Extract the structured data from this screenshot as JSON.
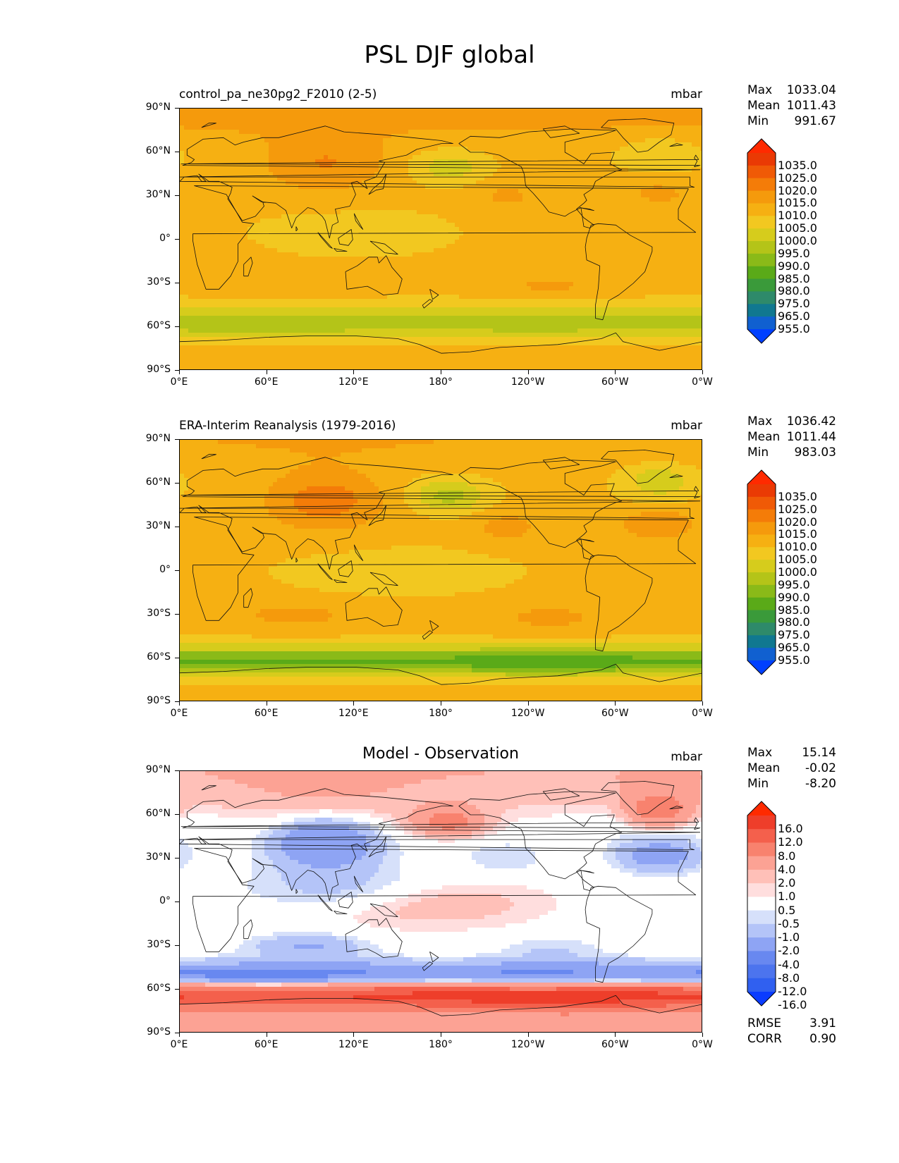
{
  "title": "PSL DJF global",
  "x_ticks": [
    "0°E",
    "60°E",
    "120°E",
    "180°",
    "120°W",
    "60°W",
    "0°W"
  ],
  "y_ticks": [
    "90°N",
    "60°N",
    "30°N",
    "0°",
    "30°S",
    "60°S",
    "90°S"
  ],
  "colors": {
    "full": [
      "#0040ff",
      "#1060d0",
      "#107890",
      "#2e8a6a",
      "#3a9a3a",
      "#5aaa18",
      "#8aba18",
      "#b4c418",
      "#d6cc1c",
      "#f2c820",
      "#f6b012",
      "#f59a0c",
      "#f47c08",
      "#f05a06",
      "#ea3a04",
      "#ff2a00"
    ],
    "diff": [
      "#0a3cff",
      "#3060f0",
      "#4c74ee",
      "#6888f0",
      "#8ea4f4",
      "#b4c4f8",
      "#d6e0fa",
      "#ffffff",
      "#ffdede",
      "#ffc0b8",
      "#fca294",
      "#f8826e",
      "#f4604c",
      "#ee3e2a",
      "#ff2a00"
    ]
  },
  "panels": [
    {
      "title": "control_pa_ne30pg2_F2010 (2-5)",
      "units": "mbar",
      "stats": [
        {
          "label": "Max",
          "value": "1033.04"
        },
        {
          "label": "Mean",
          "value": "1011.43"
        },
        {
          "label": "Min",
          "value": "991.67"
        }
      ],
      "colorbar_labels": [
        "1035.0",
        "1025.0",
        "1020.0",
        "1015.0",
        "1010.0",
        "1005.0",
        "1000.0",
        "995.0",
        "990.0",
        "985.0",
        "980.0",
        "975.0",
        "965.0",
        "955.0"
      ]
    },
    {
      "title": "ERA-Interim Reanalysis (1979-2016)",
      "units": "mbar",
      "stats": [
        {
          "label": "Max",
          "value": "1036.42"
        },
        {
          "label": "Mean",
          "value": "1011.44"
        },
        {
          "label": "Min",
          "value": "983.03"
        }
      ],
      "colorbar_labels": [
        "1035.0",
        "1025.0",
        "1020.0",
        "1015.0",
        "1010.0",
        "1005.0",
        "1000.0",
        "995.0",
        "990.0",
        "985.0",
        "980.0",
        "975.0",
        "965.0",
        "955.0"
      ]
    },
    {
      "title": "Model - Observation",
      "units": "mbar",
      "stats": [
        {
          "label": "Max",
          "value": "15.14"
        },
        {
          "label": "Mean",
          "value": "-0.02"
        },
        {
          "label": "Min",
          "value": "-8.20"
        }
      ],
      "colorbar_labels": [
        "16.0",
        "12.0",
        "8.0",
        "4.0",
        "2.0",
        "1.0",
        "0.5",
        "-0.5",
        "-1.0",
        "-2.0",
        "-4.0",
        "-8.0",
        "-12.0",
        "-16.0"
      ],
      "metrics": [
        {
          "label": "RMSE",
          "value": "3.91"
        },
        {
          "label": "CORR",
          "value": "0.90"
        }
      ]
    }
  ]
}
